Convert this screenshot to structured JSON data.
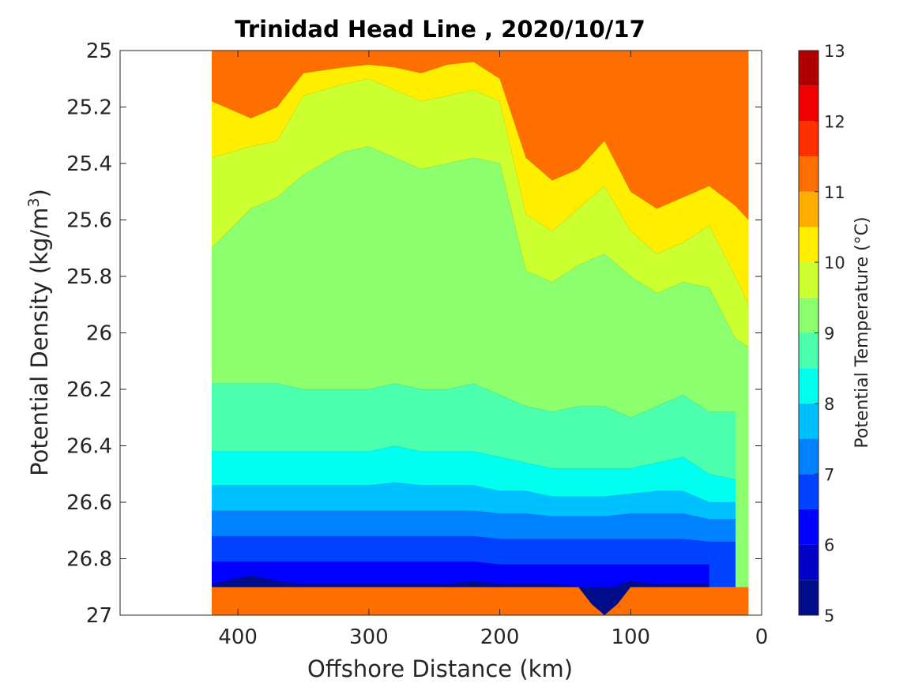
{
  "chart_data": {
    "type": "contour",
    "title": "Trinidad Head Line , 2020/10/17",
    "xlabel": "Offshore Distance (km)",
    "ylabel_prefix": "Potential Density (kg/m",
    "ylabel_sup": "3",
    "ylabel_suffix": ")",
    "colorbar_label": "Potential Temperature (°C)",
    "xlim": [
      490,
      0
    ],
    "x_reversed": true,
    "ylim": [
      25,
      27
    ],
    "y_reversed": true,
    "x_ticks": [
      "400",
      "300",
      "200",
      "100",
      "0"
    ],
    "x_tick_values": [
      400,
      300,
      200,
      100,
      0
    ],
    "y_ticks": [
      "25",
      "25.2",
      "25.4",
      "25.6",
      "25.8",
      "26",
      "26.2",
      "26.4",
      "26.6",
      "26.8",
      "27"
    ],
    "y_tick_values": [
      25,
      25.2,
      25.4,
      25.6,
      25.8,
      26,
      26.2,
      26.4,
      26.6,
      26.8,
      27
    ],
    "colorbar_range": [
      5,
      13
    ],
    "colorbar_ticks": [
      "5",
      "6",
      "7",
      "8",
      "9",
      "10",
      "11",
      "12",
      "13"
    ],
    "colorbar_tick_values": [
      5,
      6,
      7,
      8,
      9,
      10,
      11,
      12,
      13
    ],
    "contour_levels": [
      5,
      5.5,
      6,
      6.5,
      7,
      7.5,
      8,
      8.5,
      9,
      9.5,
      10,
      10.5,
      11,
      11.5,
      12,
      12.5,
      13
    ],
    "band_colors": [
      "#000d8b",
      "#0000c6",
      "#0000ff",
      "#0042ff",
      "#0081ff",
      "#00c1ff",
      "#00ffee",
      "#4bffae",
      "#8cff6e",
      "#ccff2f",
      "#ffee00",
      "#ffae00",
      "#ff6e00",
      "#ff2f00",
      "#ee0000",
      "#ae0000"
    ],
    "data_extent_x": [
      420,
      10
    ],
    "isotherms": [
      {
        "level": 10.5,
        "x": [
          420,
          390,
          370,
          350,
          320,
          300,
          280,
          260,
          240,
          220,
          200,
          180,
          160,
          140,
          120,
          100,
          80,
          60,
          40,
          20,
          10
        ],
        "y": [
          25.18,
          25.24,
          25.2,
          25.08,
          25.06,
          25.05,
          25.06,
          25.08,
          25.05,
          25.04,
          25.1,
          25.38,
          25.46,
          25.42,
          25.32,
          25.5,
          25.56,
          25.52,
          25.48,
          25.55,
          25.6
        ]
      },
      {
        "level": 10.0,
        "x": [
          420,
          390,
          370,
          350,
          320,
          300,
          280,
          260,
          240,
          220,
          200,
          180,
          160,
          140,
          120,
          100,
          80,
          60,
          40,
          20,
          10
        ],
        "y": [
          25.38,
          25.34,
          25.32,
          25.16,
          25.12,
          25.1,
          25.14,
          25.18,
          25.16,
          25.14,
          25.18,
          25.58,
          25.64,
          25.56,
          25.48,
          25.64,
          25.72,
          25.68,
          25.62,
          25.8,
          25.9
        ]
      },
      {
        "level": 9.5,
        "x": [
          420,
          390,
          370,
          350,
          320,
          300,
          280,
          260,
          240,
          220,
          200,
          180,
          160,
          140,
          120,
          100,
          80,
          60,
          40,
          20,
          10
        ],
        "y": [
          25.7,
          25.56,
          25.52,
          25.44,
          25.36,
          25.34,
          25.38,
          25.42,
          25.4,
          25.38,
          25.4,
          25.78,
          25.82,
          25.76,
          25.72,
          25.8,
          25.86,
          25.82,
          25.84,
          26.02,
          26.05
        ]
      },
      {
        "level": 9.0,
        "x": [
          420,
          390,
          370,
          350,
          320,
          300,
          280,
          260,
          240,
          220,
          200,
          180,
          160,
          140,
          120,
          100,
          80,
          60,
          40,
          20
        ],
        "y": [
          26.18,
          26.18,
          26.18,
          26.2,
          26.2,
          26.2,
          26.18,
          26.2,
          26.2,
          26.18,
          26.22,
          26.26,
          26.28,
          26.26,
          26.26,
          26.3,
          26.26,
          26.22,
          26.28,
          26.28
        ]
      },
      {
        "level": 8.5,
        "x": [
          420,
          390,
          370,
          350,
          320,
          300,
          280,
          260,
          240,
          220,
          200,
          180,
          160,
          140,
          120,
          100,
          80,
          60,
          40,
          20
        ],
        "y": [
          26.42,
          26.42,
          26.42,
          26.42,
          26.42,
          26.42,
          26.4,
          26.42,
          26.42,
          26.42,
          26.44,
          26.46,
          26.48,
          26.48,
          26.48,
          26.48,
          26.46,
          26.44,
          26.5,
          26.52
        ]
      },
      {
        "level": 8.0,
        "x": [
          420,
          390,
          370,
          350,
          320,
          300,
          280,
          260,
          240,
          220,
          200,
          180,
          160,
          140,
          120,
          100,
          80,
          60,
          40,
          20
        ],
        "y": [
          26.54,
          26.54,
          26.54,
          26.54,
          26.54,
          26.54,
          26.53,
          26.54,
          26.54,
          26.54,
          26.56,
          26.56,
          26.58,
          26.58,
          26.58,
          26.57,
          26.56,
          26.56,
          26.6,
          26.6
        ]
      },
      {
        "level": 7.5,
        "x": [
          420,
          390,
          370,
          350,
          320,
          300,
          280,
          260,
          240,
          220,
          200,
          180,
          160,
          140,
          120,
          100,
          80,
          60,
          40,
          20
        ],
        "y": [
          26.63,
          26.63,
          26.63,
          26.63,
          26.63,
          26.63,
          26.63,
          26.63,
          26.63,
          26.63,
          26.64,
          26.64,
          26.65,
          26.65,
          26.65,
          26.64,
          26.64,
          26.64,
          26.66,
          26.66
        ]
      },
      {
        "level": 7.0,
        "x": [
          420,
          390,
          370,
          350,
          320,
          300,
          280,
          260,
          240,
          220,
          200,
          180,
          160,
          140,
          120,
          100,
          80,
          60,
          40,
          20
        ],
        "y": [
          26.72,
          26.72,
          26.72,
          26.72,
          26.72,
          26.72,
          26.72,
          26.72,
          26.72,
          26.72,
          26.73,
          26.73,
          26.73,
          26.73,
          26.73,
          26.73,
          26.73,
          26.73,
          26.74,
          26.74
        ]
      },
      {
        "level": 6.5,
        "x": [
          420,
          390,
          370,
          350,
          320,
          300,
          280,
          260,
          240,
          220,
          200,
          180,
          160,
          140,
          120,
          100,
          80,
          60,
          40
        ],
        "y": [
          26.81,
          26.81,
          26.81,
          26.81,
          26.81,
          26.81,
          26.81,
          26.81,
          26.81,
          26.81,
          26.82,
          26.82,
          26.82,
          26.82,
          26.82,
          26.82,
          26.82,
          26.82,
          26.82
        ]
      },
      {
        "level": 6.0,
        "x": [
          420,
          390,
          370,
          350,
          320,
          300,
          280,
          260,
          240,
          220,
          200,
          180,
          160,
          140,
          120,
          100,
          80,
          60,
          40
        ],
        "y": [
          26.89,
          26.86,
          26.88,
          26.89,
          26.89,
          26.89,
          26.89,
          26.89,
          26.89,
          26.88,
          26.89,
          26.89,
          26.89,
          26.9,
          26.91,
          26.88,
          26.89,
          26.89,
          26.89
        ]
      }
    ]
  }
}
